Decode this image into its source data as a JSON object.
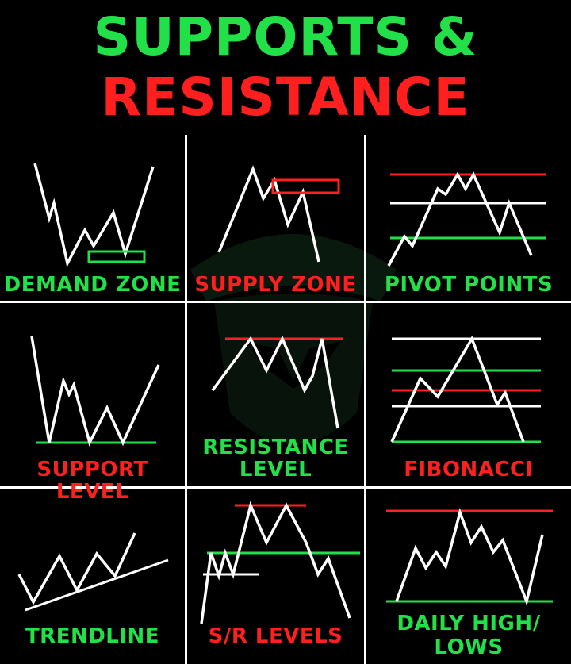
{
  "title": {
    "line1": "SUPPORTS &",
    "line2": "RESISTANCE"
  },
  "colors": {
    "green": "#22e048",
    "red": "#ff1f1f",
    "white": "#ffffff",
    "bg": "#000000"
  },
  "cells": [
    {
      "label": "DEMAND ZONE",
      "color": "green"
    },
    {
      "label": "SUPPLY ZONE",
      "color": "red"
    },
    {
      "label": "PIVOT POINTS",
      "color": "green"
    },
    {
      "label": "SUPPORT LEVEL",
      "color": "red"
    },
    {
      "label_line1": "RESISTANCE",
      "label_line2": "LEVEL",
      "color": "green"
    },
    {
      "label": "FIBONACCI",
      "color": "red"
    },
    {
      "label": "TRENDLINE",
      "color": "green"
    },
    {
      "label": "S/R LEVELS",
      "color": "red"
    },
    {
      "label_line1": "DAILY HIGH/",
      "label_line2": "LOWS",
      "color": "green"
    }
  ]
}
